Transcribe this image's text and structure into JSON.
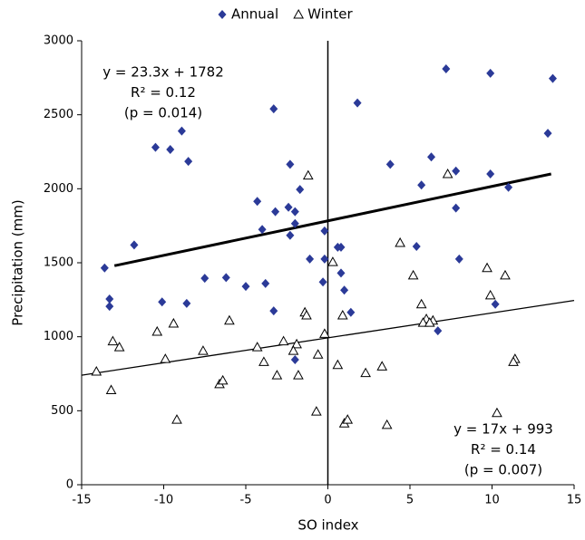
{
  "chart_data": {
    "type": "scatter",
    "xlabel": "SO index",
    "ylabel": "Precipitation (mm)",
    "xlim": [
      -15,
      15
    ],
    "ylim": [
      0,
      3000
    ],
    "xticks": [
      -15,
      -10,
      -5,
      0,
      5,
      10,
      15
    ],
    "yticks": [
      0,
      500,
      1000,
      1500,
      2000,
      2500,
      3000
    ],
    "legend": "top",
    "series": [
      {
        "name": "Annual",
        "color": "#2b3a98",
        "marker": "diamond",
        "x": [
          7.2,
          9.9,
          13.7,
          1.8,
          -3.3,
          13.4,
          -8.9,
          -10.5,
          -9.6,
          -8.5,
          -2.3,
          3.8,
          6.3,
          7.8,
          9.9,
          11.0,
          5.7,
          -1.7,
          -4.3,
          7.8,
          -3.2,
          -2.4,
          -2.0,
          -2.0,
          -4.0,
          -2.3,
          -0.2,
          -11.8,
          -13.6,
          0.6,
          0.8,
          5.4,
          -1.1,
          -0.2,
          8.0,
          -7.5,
          -6.2,
          -5.0,
          -3.8,
          -0.3,
          0.8,
          1.0,
          -10.1,
          -8.6,
          -13.3,
          -13.3,
          -3.3,
          1.4,
          10.2,
          6.7,
          -2.0
        ],
        "values": [
          2810,
          2780,
          2745,
          2580,
          2540,
          2375,
          2390,
          2280,
          2265,
          2185,
          2165,
          2165,
          2215,
          2120,
          2100,
          2010,
          2025,
          1995,
          1915,
          1870,
          1845,
          1875,
          1845,
          1765,
          1725,
          1685,
          1715,
          1620,
          1465,
          1605,
          1605,
          1610,
          1525,
          1525,
          1525,
          1395,
          1400,
          1340,
          1360,
          1370,
          1430,
          1315,
          1235,
          1225,
          1255,
          1205,
          1175,
          1165,
          1220,
          1040,
          845
        ]
      },
      {
        "name": "Winter",
        "color": "#000000",
        "marker": "triangle",
        "x": [
          -1.2,
          7.3,
          4.4,
          0.3,
          5.2,
          9.7,
          10.8,
          9.9,
          5.7,
          0.9,
          -1.4,
          -1.3,
          6.0,
          6.4,
          5.8,
          6.2,
          -6.0,
          -9.4,
          -10.4,
          -0.2,
          -2.7,
          -1.9,
          -13.1,
          -12.7,
          -4.3,
          -2.1,
          -7.6,
          -9.9,
          -3.9,
          -0.6,
          -14.1,
          -3.1,
          -1.8,
          0.6,
          2.3,
          3.3,
          11.4,
          11.3,
          -6.6,
          -6.4,
          -13.2,
          -0.7,
          -9.2,
          1.0,
          1.2,
          3.6,
          10.3
        ],
        "values": [
          2090,
          2100,
          1635,
          1505,
          1415,
          1465,
          1415,
          1280,
          1220,
          1145,
          1165,
          1145,
          1120,
          1110,
          1095,
          1095,
          1110,
          1090,
          1035,
          1020,
          970,
          950,
          970,
          930,
          930,
          905,
          905,
          850,
          830,
          880,
          765,
          740,
          740,
          810,
          755,
          800,
          850,
          830,
          680,
          705,
          640,
          495,
          440,
          415,
          440,
          405,
          485
        ]
      }
    ],
    "trendlines": [
      {
        "x": [
          -13,
          13.6
        ],
        "values": [
          1480,
          2100
        ],
        "color": "#000000"
      },
      {
        "x": [
          -15,
          15
        ],
        "values": [
          740,
          1245
        ],
        "color": "#000000"
      }
    ],
    "annotations": [
      {
        "lines": [
          "y = 23.3x + 1782",
          "R² = 0.12",
          "(p = 0.014)"
        ]
      },
      {
        "lines": [
          "y = 17x + 993",
          "R² = 0.14",
          "(p = 0.007)"
        ]
      }
    ]
  }
}
